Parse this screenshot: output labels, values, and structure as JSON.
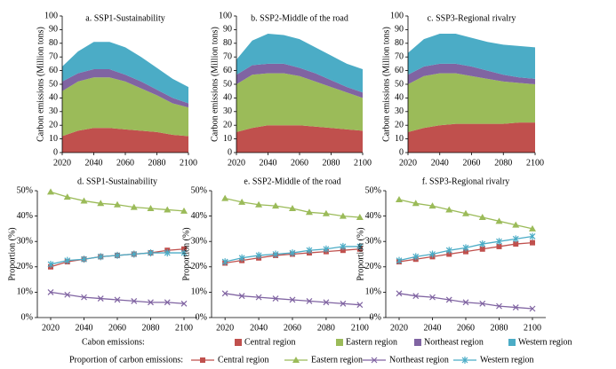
{
  "legend_titles": [
    "Cabon emissions:",
    "Proportion of carbon emissions:"
  ],
  "chart_data": [
    {
      "type": "area",
      "title": "a. SSP1-Sustainability",
      "y_label": "Carbon emissions (Million tons)",
      "x": [
        2020,
        2030,
        2040,
        2050,
        2060,
        2070,
        2080,
        2090,
        2100
      ],
      "xlim": [
        2020,
        2100
      ],
      "xticks": [
        2020,
        2040,
        2060,
        2080,
        2100
      ],
      "ylim": [
        0,
        100
      ],
      "yticks": [
        0,
        10,
        20,
        30,
        40,
        50,
        60,
        70,
        80,
        90,
        100
      ],
      "stacked": true,
      "series": [
        {
          "name": "Central region",
          "color": "#c0504d",
          "values": [
            12,
            16,
            18,
            18,
            17,
            16,
            15,
            13,
            12
          ]
        },
        {
          "name": "Eastern region",
          "color": "#9bbb59",
          "values": [
            33,
            36,
            37,
            37,
            35,
            31,
            27,
            23,
            21
          ]
        },
        {
          "name": "Northeast region",
          "color": "#8064a2",
          "values": [
            7,
            6,
            6,
            6,
            5,
            5,
            4,
            4,
            3
          ]
        },
        {
          "name": "Western region",
          "color": "#4bacc6",
          "values": [
            11,
            16,
            20,
            20,
            20,
            18,
            16,
            14,
            12
          ]
        }
      ]
    },
    {
      "type": "area",
      "title": "b. SSP2-Middle of the road",
      "y_label": "Carbon emissions (Million tons)",
      "x": [
        2020,
        2030,
        2040,
        2050,
        2060,
        2070,
        2080,
        2090,
        2100
      ],
      "xlim": [
        2020,
        2100
      ],
      "xticks": [
        2020,
        2040,
        2060,
        2080,
        2100
      ],
      "ylim": [
        0,
        100
      ],
      "yticks": [
        0,
        10,
        20,
        30,
        40,
        50,
        60,
        70,
        80,
        90,
        100
      ],
      "stacked": true,
      "series": [
        {
          "name": "Central region",
          "color": "#c0504d",
          "values": [
            15,
            18,
            20,
            20,
            20,
            19,
            18,
            17,
            16
          ]
        },
        {
          "name": "Eastern region",
          "color": "#9bbb59",
          "values": [
            35,
            39,
            38,
            38,
            36,
            33,
            30,
            27,
            24
          ]
        },
        {
          "name": "Northeast region",
          "color": "#8064a2",
          "values": [
            7,
            7,
            7,
            7,
            6,
            6,
            5,
            4,
            4
          ]
        },
        {
          "name": "Western region",
          "color": "#4bacc6",
          "values": [
            11,
            18,
            22,
            21,
            21,
            19,
            18,
            17,
            17
          ]
        }
      ]
    },
    {
      "type": "area",
      "title": "c. SSP3-Regional rivalry",
      "y_label": "Carbon emissions (Million tons)",
      "x": [
        2020,
        2030,
        2040,
        2050,
        2060,
        2070,
        2080,
        2090,
        2100
      ],
      "xlim": [
        2020,
        2100
      ],
      "xticks": [
        2020,
        2040,
        2060,
        2080,
        2100
      ],
      "ylim": [
        0,
        100
      ],
      "yticks": [
        0,
        10,
        20,
        30,
        40,
        50,
        60,
        70,
        80,
        90,
        100
      ],
      "stacked": true,
      "series": [
        {
          "name": "Central region",
          "color": "#c0504d",
          "values": [
            15,
            18,
            20,
            21,
            21,
            21,
            21,
            22,
            22
          ]
        },
        {
          "name": "Eastern region",
          "color": "#9bbb59",
          "values": [
            35,
            38,
            38,
            37,
            35,
            33,
            31,
            29,
            28
          ]
        },
        {
          "name": "Northeast region",
          "color": "#8064a2",
          "values": [
            7,
            7,
            7,
            7,
            7,
            6,
            5,
            4,
            4
          ]
        },
        {
          "name": "Western region",
          "color": "#4bacc6",
          "values": [
            16,
            20,
            22,
            22,
            21,
            21,
            22,
            23,
            23
          ]
        }
      ]
    },
    {
      "type": "line",
      "title": "d. SSP1-Sustainability",
      "y_label": "Proportion (%)",
      "x": [
        2020,
        2030,
        2040,
        2050,
        2060,
        2070,
        2080,
        2090,
        2100
      ],
      "xlim": [
        2012,
        2108
      ],
      "xticks": [
        2020,
        2040,
        2060,
        2080,
        2100
      ],
      "ylim": [
        0,
        50
      ],
      "yticks": [
        {
          "value": 0,
          "label": "0%"
        },
        {
          "value": 10,
          "label": "10%"
        },
        {
          "value": 20,
          "label": "20%"
        },
        {
          "value": 30,
          "label": "30%"
        },
        {
          "value": 40,
          "label": "40%"
        },
        {
          "value": 50,
          "label": "50%"
        }
      ],
      "series": [
        {
          "name": "Central region",
          "color": "#c0504d",
          "marker": "square",
          "values": [
            20,
            22,
            23,
            24,
            24.5,
            25,
            25.5,
            26.5,
            27
          ]
        },
        {
          "name": "Eastern region",
          "color": "#9bbb59",
          "marker": "triangle",
          "values": [
            49.5,
            47.5,
            46,
            45,
            44.5,
            43.5,
            43,
            42.5,
            42
          ]
        },
        {
          "name": "Northeast region",
          "color": "#8064a2",
          "marker": "x",
          "values": [
            10,
            9,
            8,
            7.5,
            7,
            6.5,
            6,
            6,
            5.5
          ]
        },
        {
          "name": "Western region",
          "color": "#4bacc6",
          "marker": "asterisk",
          "values": [
            21,
            22.5,
            23,
            24,
            24.5,
            25,
            25.5,
            25.5,
            25.5
          ]
        }
      ]
    },
    {
      "type": "line",
      "title": "e. SSP2-Middle of the road",
      "y_label": "Proportion (%)",
      "x": [
        2020,
        2030,
        2040,
        2050,
        2060,
        2070,
        2080,
        2090,
        2100
      ],
      "xlim": [
        2012,
        2108
      ],
      "xticks": [
        2020,
        2040,
        2060,
        2080,
        2100
      ],
      "ylim": [
        0,
        50
      ],
      "yticks": [
        {
          "value": 0,
          "label": "0%"
        },
        {
          "value": 10,
          "label": "10%"
        },
        {
          "value": 20,
          "label": "20%"
        },
        {
          "value": 30,
          "label": "30%"
        },
        {
          "value": 40,
          "label": "40%"
        },
        {
          "value": 50,
          "label": "50%"
        }
      ],
      "series": [
        {
          "name": "Central region",
          "color": "#c0504d",
          "marker": "square",
          "values": [
            21.5,
            22.5,
            23.5,
            24.5,
            25,
            25.5,
            26,
            26.5,
            27
          ]
        },
        {
          "name": "Eastern region",
          "color": "#9bbb59",
          "marker": "triangle",
          "values": [
            47,
            45.5,
            44.5,
            44,
            43,
            41.5,
            41,
            40,
            39.5
          ]
        },
        {
          "name": "Northeast region",
          "color": "#8064a2",
          "marker": "x",
          "values": [
            9.5,
            8.5,
            8,
            7.5,
            7,
            6.5,
            6,
            5.5,
            5
          ]
        },
        {
          "name": "Western region",
          "color": "#4bacc6",
          "marker": "asterisk",
          "values": [
            22,
            23.5,
            24.5,
            25,
            25.5,
            26.5,
            27,
            28,
            28
          ]
        }
      ]
    },
    {
      "type": "line",
      "title": "f. SSP3-Regional rivalry",
      "y_label": "Proportion (%)",
      "x": [
        2020,
        2030,
        2040,
        2050,
        2060,
        2070,
        2080,
        2090,
        2100
      ],
      "xlim": [
        2012,
        2108
      ],
      "xticks": [
        2020,
        2040,
        2060,
        2080,
        2100
      ],
      "ylim": [
        0,
        50
      ],
      "yticks": [
        {
          "value": 0,
          "label": "0%"
        },
        {
          "value": 10,
          "label": "10%"
        },
        {
          "value": 20,
          "label": "20%"
        },
        {
          "value": 30,
          "label": "30%"
        },
        {
          "value": 40,
          "label": "40%"
        },
        {
          "value": 50,
          "label": "50%"
        }
      ],
      "series": [
        {
          "name": "Central region",
          "color": "#c0504d",
          "marker": "square",
          "values": [
            22,
            23,
            24,
            25,
            26,
            27,
            28,
            29,
            29.5
          ]
        },
        {
          "name": "Eastern region",
          "color": "#9bbb59",
          "marker": "triangle",
          "values": [
            46.5,
            45,
            44,
            42.5,
            41,
            39.5,
            38,
            36.5,
            35
          ]
        },
        {
          "name": "Northeast region",
          "color": "#8064a2",
          "marker": "x",
          "values": [
            9.5,
            8.5,
            8,
            7,
            6,
            5.5,
            4.5,
            4,
            3.5
          ]
        },
        {
          "name": "Western region",
          "color": "#4bacc6",
          "marker": "asterisk",
          "values": [
            22.5,
            24,
            25,
            26.5,
            27.5,
            29,
            30,
            31,
            32
          ]
        }
      ]
    }
  ]
}
